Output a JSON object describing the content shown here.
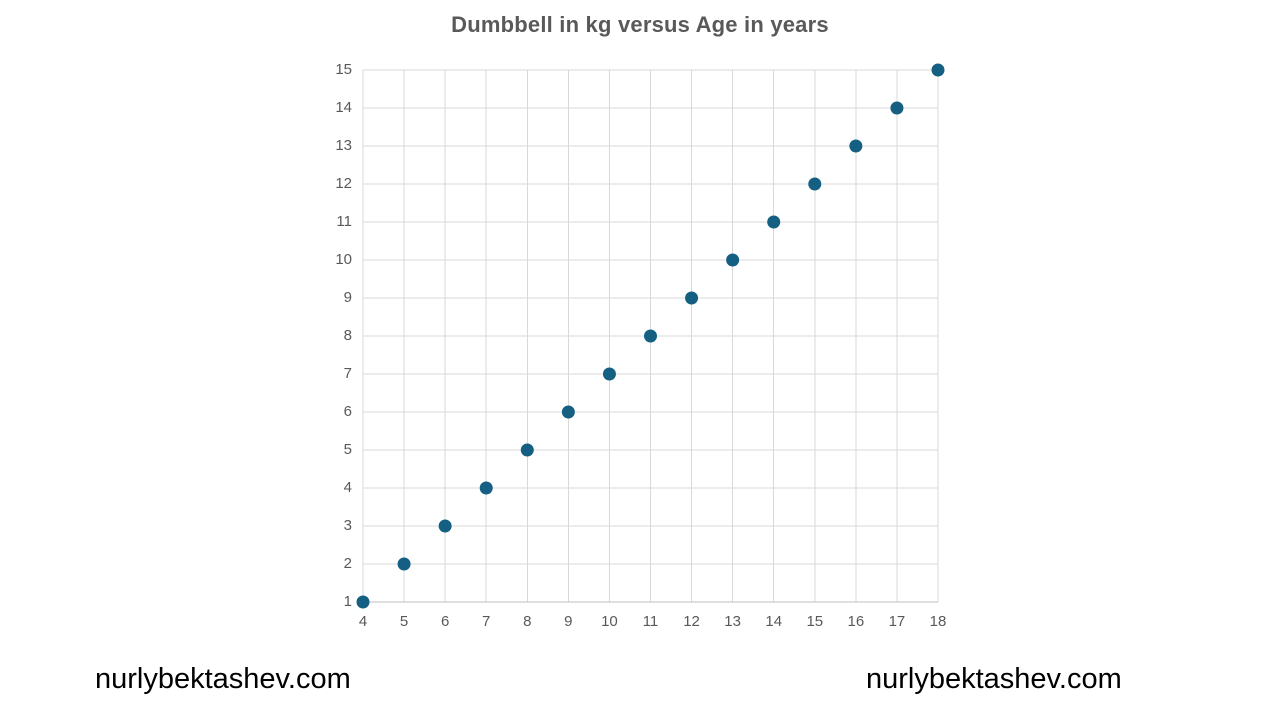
{
  "chart_data": {
    "type": "scatter",
    "title": "Dumbbell in kg versus Age in years",
    "x": [
      4,
      5,
      6,
      7,
      8,
      9,
      10,
      11,
      12,
      13,
      14,
      15,
      16,
      17,
      18
    ],
    "y": [
      1,
      2,
      3,
      4,
      5,
      6,
      7,
      8,
      9,
      10,
      11,
      12,
      13,
      14,
      15
    ],
    "xlabel": "",
    "ylabel": "",
    "xlim": [
      4,
      18
    ],
    "ylim": [
      1,
      15
    ],
    "xticks": [
      4,
      5,
      6,
      7,
      8,
      9,
      10,
      11,
      12,
      13,
      14,
      15,
      16,
      17,
      18
    ],
    "yticks": [
      1,
      2,
      3,
      4,
      5,
      6,
      7,
      8,
      9,
      10,
      11,
      12,
      13,
      14,
      15
    ],
    "grid": true,
    "legend": false,
    "point_color": "#156082",
    "point_radius": 6.5,
    "grid_color": "#D9D9D9",
    "axis_line_color": "#BFBFBF",
    "title_color": "#595959",
    "tick_label_color": "#595959"
  },
  "watermarks": {
    "left": "nurlybektashev.com",
    "right": "nurlybektashev.com"
  }
}
